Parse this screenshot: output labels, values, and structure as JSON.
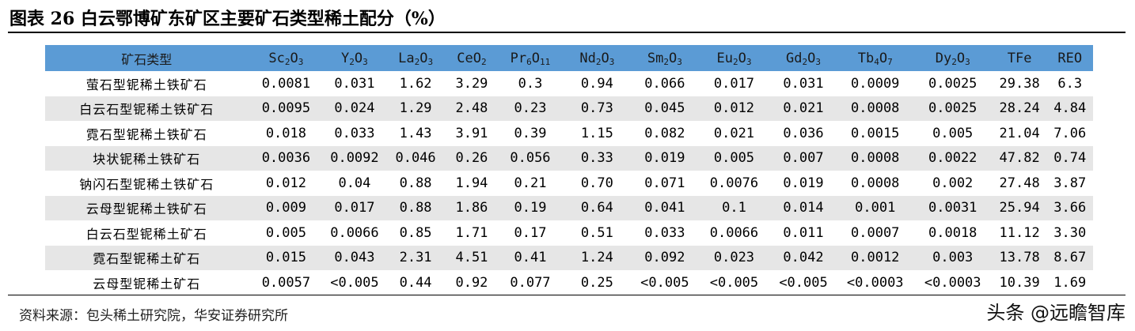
{
  "title": "图表 26 白云鄂博矿东矿区主要矿石类型稀土配分（%）",
  "table": {
    "headers": [
      {
        "base": "矿石类型",
        "parts": []
      },
      {
        "parts": [
          {
            "t": "Sc"
          },
          {
            "t": "2",
            "s": 1
          },
          {
            "t": "O"
          },
          {
            "t": "3",
            "s": 1
          }
        ]
      },
      {
        "parts": [
          {
            "t": "Y"
          },
          {
            "t": "2",
            "s": 1
          },
          {
            "t": "O"
          },
          {
            "t": "3",
            "s": 1
          }
        ]
      },
      {
        "parts": [
          {
            "t": "La"
          },
          {
            "t": "2",
            "s": 1
          },
          {
            "t": "O"
          },
          {
            "t": "3",
            "s": 1
          }
        ]
      },
      {
        "parts": [
          {
            "t": "CeO"
          },
          {
            "t": "2",
            "s": 1
          }
        ]
      },
      {
        "parts": [
          {
            "t": "Pr"
          },
          {
            "t": "6",
            "s": 1
          },
          {
            "t": "O"
          },
          {
            "t": "11",
            "s": 1
          }
        ]
      },
      {
        "parts": [
          {
            "t": "Nd"
          },
          {
            "t": "2",
            "s": 1
          },
          {
            "t": "O"
          },
          {
            "t": "3",
            "s": 1
          }
        ]
      },
      {
        "parts": [
          {
            "t": "Sm"
          },
          {
            "t": "2",
            "s": 1
          },
          {
            "t": "O"
          },
          {
            "t": "3",
            "s": 1
          }
        ]
      },
      {
        "parts": [
          {
            "t": "Eu"
          },
          {
            "t": "2",
            "s": 1
          },
          {
            "t": "O"
          },
          {
            "t": "3",
            "s": 1
          }
        ]
      },
      {
        "parts": [
          {
            "t": "Gd"
          },
          {
            "t": "2",
            "s": 1
          },
          {
            "t": "O"
          },
          {
            "t": "3",
            "s": 1
          }
        ]
      },
      {
        "parts": [
          {
            "t": "Tb"
          },
          {
            "t": "4",
            "s": 1
          },
          {
            "t": "O"
          },
          {
            "t": "7",
            "s": 1
          }
        ]
      },
      {
        "parts": [
          {
            "t": "Dy"
          },
          {
            "t": "2",
            "s": 1
          },
          {
            "t": "O"
          },
          {
            "t": "3",
            "s": 1
          }
        ]
      },
      {
        "parts": [
          {
            "t": "TFe"
          }
        ]
      },
      {
        "parts": [
          {
            "t": "REO"
          }
        ]
      }
    ],
    "rows": [
      [
        "萤石型铌稀土铁矿石",
        "0.0081",
        "0.031",
        "1.62",
        "3.29",
        "0.3",
        "0.94",
        "0.066",
        "0.017",
        "0.031",
        "0.0009",
        "0.0025",
        "29.38",
        "6.3"
      ],
      [
        "白云石型铌稀土铁矿石",
        "0.0095",
        "0.024",
        "1.29",
        "2.48",
        "0.23",
        "0.73",
        "0.045",
        "0.012",
        "0.021",
        "0.0008",
        "0.0025",
        "28.24",
        "4.84"
      ],
      [
        "霓石型铌稀土铁矿石",
        "0.018",
        "0.033",
        "1.43",
        "3.91",
        "0.39",
        "1.15",
        "0.082",
        "0.021",
        "0.036",
        "0.0015",
        "0.005",
        "21.04",
        "7.06"
      ],
      [
        "块状铌稀土铁矿石",
        "0.0036",
        "0.0092",
        "0.046",
        "0.26",
        "0.056",
        "0.33",
        "0.019",
        "0.005",
        "0.007",
        "0.0008",
        "0.0022",
        "47.82",
        "0.74"
      ],
      [
        "钠闪石型铌稀土铁矿石",
        "0.012",
        "0.04",
        "0.88",
        "1.94",
        "0.21",
        "0.70",
        "0.071",
        "0.0076",
        "0.019",
        "0.0008",
        "0.002",
        "27.48",
        "3.87"
      ],
      [
        "云母型铌稀土铁矿石",
        "0.009",
        "0.017",
        "0.88",
        "1.86",
        "0.19",
        "0.64",
        "0.041",
        "0.1",
        "0.014",
        "0.001",
        "0.0031",
        "25.94",
        "3.66"
      ],
      [
        "白云石型铌稀土矿石",
        "0.005",
        "0.0066",
        "0.85",
        "1.71",
        "0.17",
        "0.51",
        "0.033",
        "0.0066",
        "0.011",
        "0.0007",
        "0.0018",
        "11.12",
        "3.30"
      ],
      [
        "霓石型铌稀土矿石",
        "0.015",
        "0.043",
        "2.31",
        "4.51",
        "0.41",
        "1.24",
        "0.092",
        "0.023",
        "0.042",
        "0.0012",
        "0.003",
        "13.78",
        "8.67"
      ],
      [
        "云母型铌稀土矿石",
        "0.0057",
        "<0.005",
        "0.44",
        "0.92",
        "0.077",
        "0.25",
        "<0.005",
        "<0.005",
        "<0.005",
        "<0.0003",
        "<0.0003",
        "10.39",
        "1.69"
      ]
    ]
  },
  "source": "资料来源：包头稀土研究院，华安证券研究所",
  "watermark": "头条 @远瞻智库",
  "colors": {
    "header_bg": "#5b9bd5",
    "alt_row_bg": "#e6e6e6"
  }
}
